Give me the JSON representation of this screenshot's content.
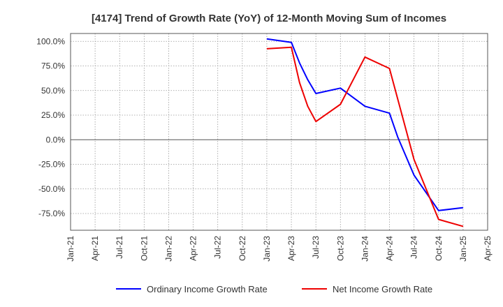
{
  "chart_data": {
    "type": "line",
    "title": "[4174]  Trend of Growth Rate (YoY) of 12-Month Moving Sum of Incomes",
    "xlabel": "",
    "ylabel": "",
    "x_ticks": [
      "Jan-21",
      "Apr-21",
      "Jul-21",
      "Oct-21",
      "Jan-22",
      "Apr-22",
      "Jul-22",
      "Oct-22",
      "Jan-23",
      "Apr-23",
      "Jul-23",
      "Oct-23",
      "Jan-24",
      "Apr-24",
      "Jul-24",
      "Oct-24",
      "Jan-25",
      "Apr-25"
    ],
    "y_ticks": [
      "100.0%",
      "75.0%",
      "50.0%",
      "25.0%",
      "0.0%",
      "-25.0%",
      "-50.0%",
      "-75.0%"
    ],
    "y_tick_values": [
      100,
      75,
      50,
      25,
      0,
      -25,
      -50,
      -75
    ],
    "ylim": [
      -92,
      108
    ],
    "x_range": [
      "Jan-21",
      "Apr-25"
    ],
    "grid": true,
    "legend_position": "bottom",
    "series": [
      {
        "name": "Ordinary Income Growth Rate",
        "color": "#0000ff",
        "points": [
          {
            "x": "Jan-23",
            "y": 102.5
          },
          {
            "x": "Apr-23",
            "y": 99.0
          },
          {
            "x": "May-23",
            "y": 78.0
          },
          {
            "x": "Jun-23",
            "y": 61.0
          },
          {
            "x": "Jul-23",
            "y": 47.0
          },
          {
            "x": "Oct-23",
            "y": 52.5
          },
          {
            "x": "Jan-24",
            "y": 34.0
          },
          {
            "x": "Apr-24",
            "y": 27.0
          },
          {
            "x": "May-24",
            "y": 3.0
          },
          {
            "x": "Jul-24",
            "y": -36.0
          },
          {
            "x": "Oct-24",
            "y": -72.0
          },
          {
            "x": "Jan-25",
            "y": -69.0
          }
        ]
      },
      {
        "name": "Net Income Growth Rate",
        "color": "#ee0000",
        "points": [
          {
            "x": "Jan-23",
            "y": 92.5
          },
          {
            "x": "Apr-23",
            "y": 94.0
          },
          {
            "x": "May-23",
            "y": 58.0
          },
          {
            "x": "Jun-23",
            "y": 34.0
          },
          {
            "x": "Jul-23",
            "y": 18.5
          },
          {
            "x": "Oct-23",
            "y": 36.0
          },
          {
            "x": "Jan-24",
            "y": 84.0
          },
          {
            "x": "Apr-24",
            "y": 72.5
          },
          {
            "x": "Jul-24",
            "y": -20.0
          },
          {
            "x": "Oct-24",
            "y": -81.0
          },
          {
            "x": "Jan-25",
            "y": -88.0
          }
        ]
      }
    ]
  }
}
